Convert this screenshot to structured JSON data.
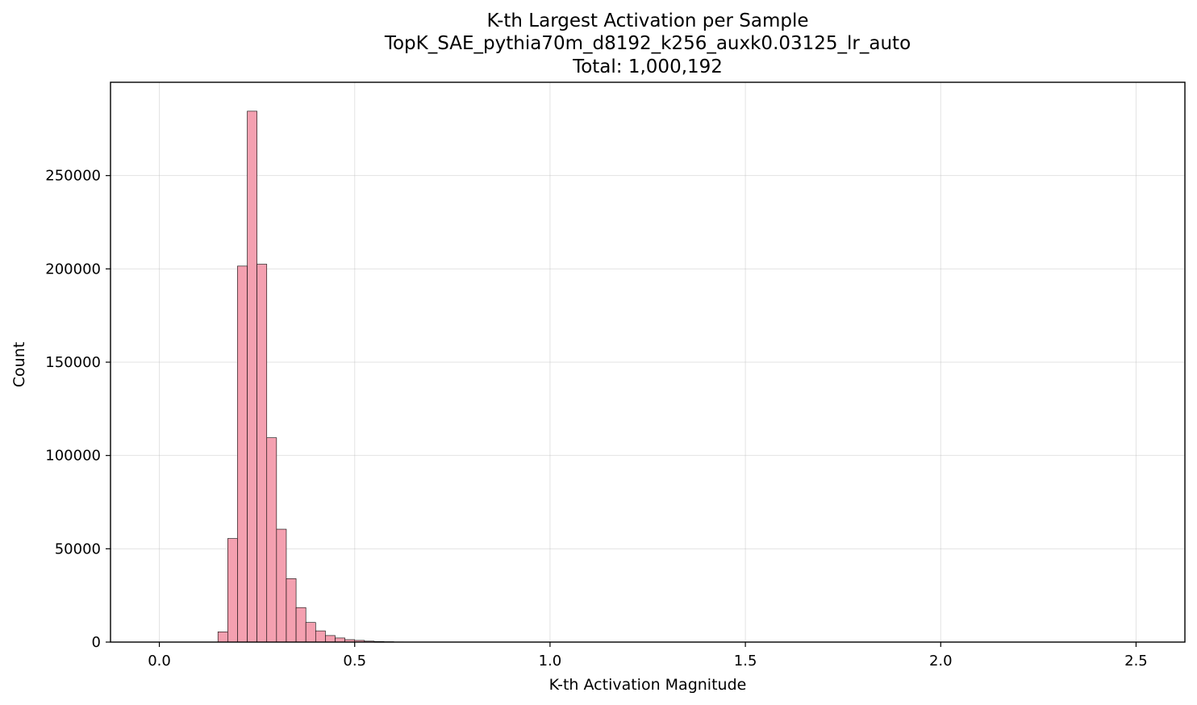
{
  "chart_data": {
    "type": "bar",
    "title_lines": [
      "K-th Largest Activation per Sample",
      "TopK_SAE_pythia70m_d8192_k256_auxk0.03125_lr_auto",
      "Total: 1,000,192"
    ],
    "xlabel": "K-th Activation Magnitude",
    "ylabel": "Count",
    "xlim": [
      -0.125,
      2.625
    ],
    "ylim": [
      0,
      300000
    ],
    "xticks": [
      0.0,
      0.5,
      1.0,
      1.5,
      2.0,
      2.5
    ],
    "xtick_labels": [
      "0.0",
      "0.5",
      "1.0",
      "1.5",
      "2.0",
      "2.5"
    ],
    "yticks": [
      0,
      50000,
      100000,
      150000,
      200000,
      250000
    ],
    "ytick_labels": [
      "0",
      "50000",
      "100000",
      "150000",
      "200000",
      "250000"
    ],
    "grid": true,
    "bar_color": "#f4a0b0",
    "bar_edge_color": "#000000",
    "bin_width": 0.025,
    "bin_starts": [
      0.15,
      0.175,
      0.2,
      0.225,
      0.25,
      0.275,
      0.3,
      0.325,
      0.35,
      0.375,
      0.4,
      0.425,
      0.45,
      0.475,
      0.5,
      0.525,
      0.55,
      0.575,
      0.6
    ],
    "values": [
      5500,
      55500,
      201500,
      284500,
      202500,
      109500,
      60500,
      34000,
      18500,
      10500,
      6000,
      3500,
      2200,
      1300,
      900,
      500,
      300,
      200,
      100
    ]
  }
}
